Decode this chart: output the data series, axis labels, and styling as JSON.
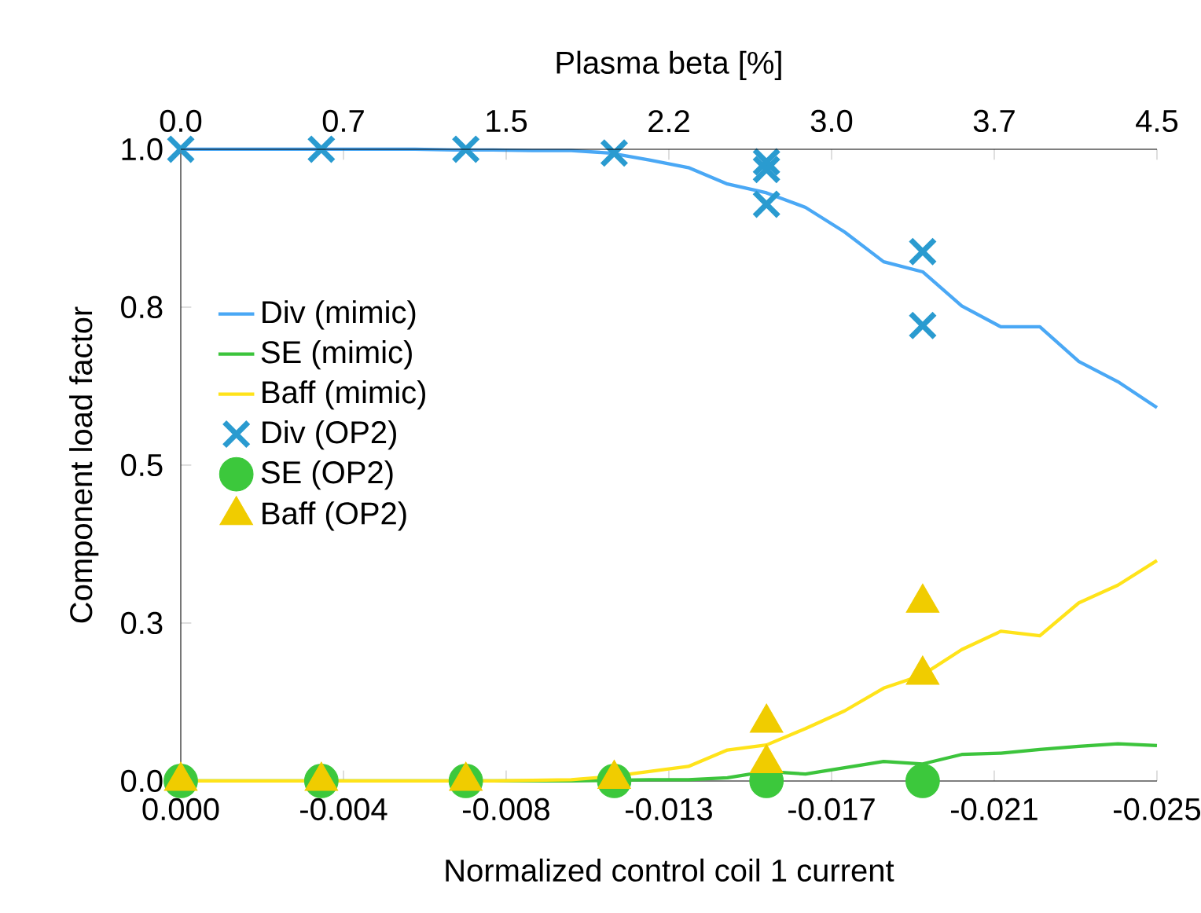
{
  "chart_data": {
    "type": "line",
    "xlabel": "Normalized control coil 1 current",
    "ylabel": "Component load factor",
    "x2label": "Plasma beta [%]",
    "xlim": [
      0,
      -0.025
    ],
    "ylim": [
      0,
      1
    ],
    "x2lim": [
      0,
      4.5
    ],
    "xticks": [
      {
        "value": 0,
        "label": "0.000"
      },
      {
        "value": -0.004167,
        "label": "-0.004"
      },
      {
        "value": -0.008333,
        "label": "-0.008"
      },
      {
        "value": -0.0125,
        "label": "-0.013"
      },
      {
        "value": -0.016667,
        "label": "-0.017"
      },
      {
        "value": -0.020833,
        "label": "-0.021"
      },
      {
        "value": -0.025,
        "label": "-0.025"
      }
    ],
    "x2ticks": [
      {
        "value": 0,
        "label": "0.0"
      },
      {
        "value": 0.75,
        "label": "0.7"
      },
      {
        "value": 1.5,
        "label": "1.5"
      },
      {
        "value": 2.25,
        "label": "2.2"
      },
      {
        "value": 3.0,
        "label": "3.0"
      },
      {
        "value": 3.75,
        "label": "3.7"
      },
      {
        "value": 4.5,
        "label": "4.5"
      }
    ],
    "yticks": [
      {
        "value": 0,
        "label": "0.0"
      },
      {
        "value": 0.25,
        "label": "0.3"
      },
      {
        "value": 0.5,
        "label": "0.5"
      },
      {
        "value": 0.75,
        "label": "0.8"
      },
      {
        "value": 1,
        "label": "1.0"
      }
    ],
    "grid": false,
    "legend": "left",
    "series": [
      {
        "name": "Div (mimic)",
        "marker": "none",
        "color": "#4aa8f5",
        "x": [
          0,
          -0.001,
          -0.002,
          -0.003,
          -0.004,
          -0.005,
          -0.006,
          -0.007,
          -0.008,
          -0.009,
          -0.01,
          -0.011,
          -0.012,
          -0.013,
          -0.014,
          -0.015,
          -0.016,
          -0.017,
          -0.018,
          -0.019,
          -0.02,
          -0.021,
          -0.022,
          -0.023,
          -0.024,
          -0.025
        ],
        "values": [
          1.0,
          1.0,
          1.0,
          1.0,
          1.0,
          1.0,
          1.0,
          0.999,
          0.999,
          0.998,
          0.998,
          0.994,
          0.983,
          0.971,
          0.945,
          0.931,
          0.908,
          0.869,
          0.822,
          0.806,
          0.752,
          0.719,
          0.719,
          0.664,
          0.632,
          0.591
        ]
      },
      {
        "name": "SE (mimic)",
        "marker": "none",
        "color": "#3cc43c",
        "x": [
          0,
          -0.001,
          -0.002,
          -0.003,
          -0.004,
          -0.005,
          -0.006,
          -0.007,
          -0.008,
          -0.009,
          -0.01,
          -0.011,
          -0.012,
          -0.013,
          -0.014,
          -0.015,
          -0.016,
          -0.017,
          -0.018,
          -0.019,
          -0.02,
          -0.021,
          -0.022,
          -0.023,
          -0.024,
          -0.025
        ],
        "values": [
          0,
          0,
          0,
          0,
          0,
          0,
          0,
          0,
          0,
          0,
          0,
          0.001,
          0.002,
          0.002,
          0.005,
          0.015,
          0.011,
          0.021,
          0.031,
          0.027,
          0.042,
          0.044,
          0.05,
          0.055,
          0.059,
          0.056
        ]
      },
      {
        "name": "Baff (mimic)",
        "marker": "none",
        "color": "#ffe31a",
        "x": [
          0,
          -0.001,
          -0.002,
          -0.003,
          -0.004,
          -0.005,
          -0.006,
          -0.007,
          -0.008,
          -0.009,
          -0.01,
          -0.011,
          -0.012,
          -0.013,
          -0.014,
          -0.015,
          -0.016,
          -0.017,
          -0.018,
          -0.019,
          -0.02,
          -0.021,
          -0.022,
          -0.023,
          -0.024,
          -0.025
        ],
        "values": [
          0,
          0,
          0,
          0,
          0,
          0,
          0,
          0,
          0,
          0.001,
          0.002,
          0.007,
          0.015,
          0.023,
          0.049,
          0.057,
          0.083,
          0.111,
          0.147,
          0.168,
          0.208,
          0.237,
          0.23,
          0.282,
          0.31,
          0.349
        ]
      },
      {
        "name": "Div (OP2)",
        "type": "scatter",
        "marker": "cross",
        "color": "#2a9bd0",
        "x": [
          0,
          -0.0036,
          -0.0073,
          -0.0111,
          -0.015,
          -0.015,
          -0.015,
          -0.019,
          -0.019
        ],
        "values": [
          1.0,
          1.0,
          1.0,
          0.994,
          0.98,
          0.968,
          0.913,
          0.838,
          0.721
        ]
      },
      {
        "name": "SE (OP2)",
        "type": "scatter",
        "marker": "circle",
        "color": "#3cc83c",
        "x": [
          0,
          -0.0036,
          -0.0073,
          -0.0111,
          -0.015,
          -0.019
        ],
        "values": [
          0,
          0,
          0,
          0,
          0,
          0
        ]
      },
      {
        "name": "Baff (OP2)",
        "type": "scatter",
        "marker": "triangle",
        "color": "#f0cc00",
        "x": [
          0,
          -0.0036,
          -0.0073,
          -0.0111,
          -0.015,
          -0.015,
          -0.019,
          -0.019
        ],
        "values": [
          0,
          0,
          0,
          0.003,
          0.092,
          0.028,
          0.282,
          0.168
        ]
      }
    ]
  }
}
